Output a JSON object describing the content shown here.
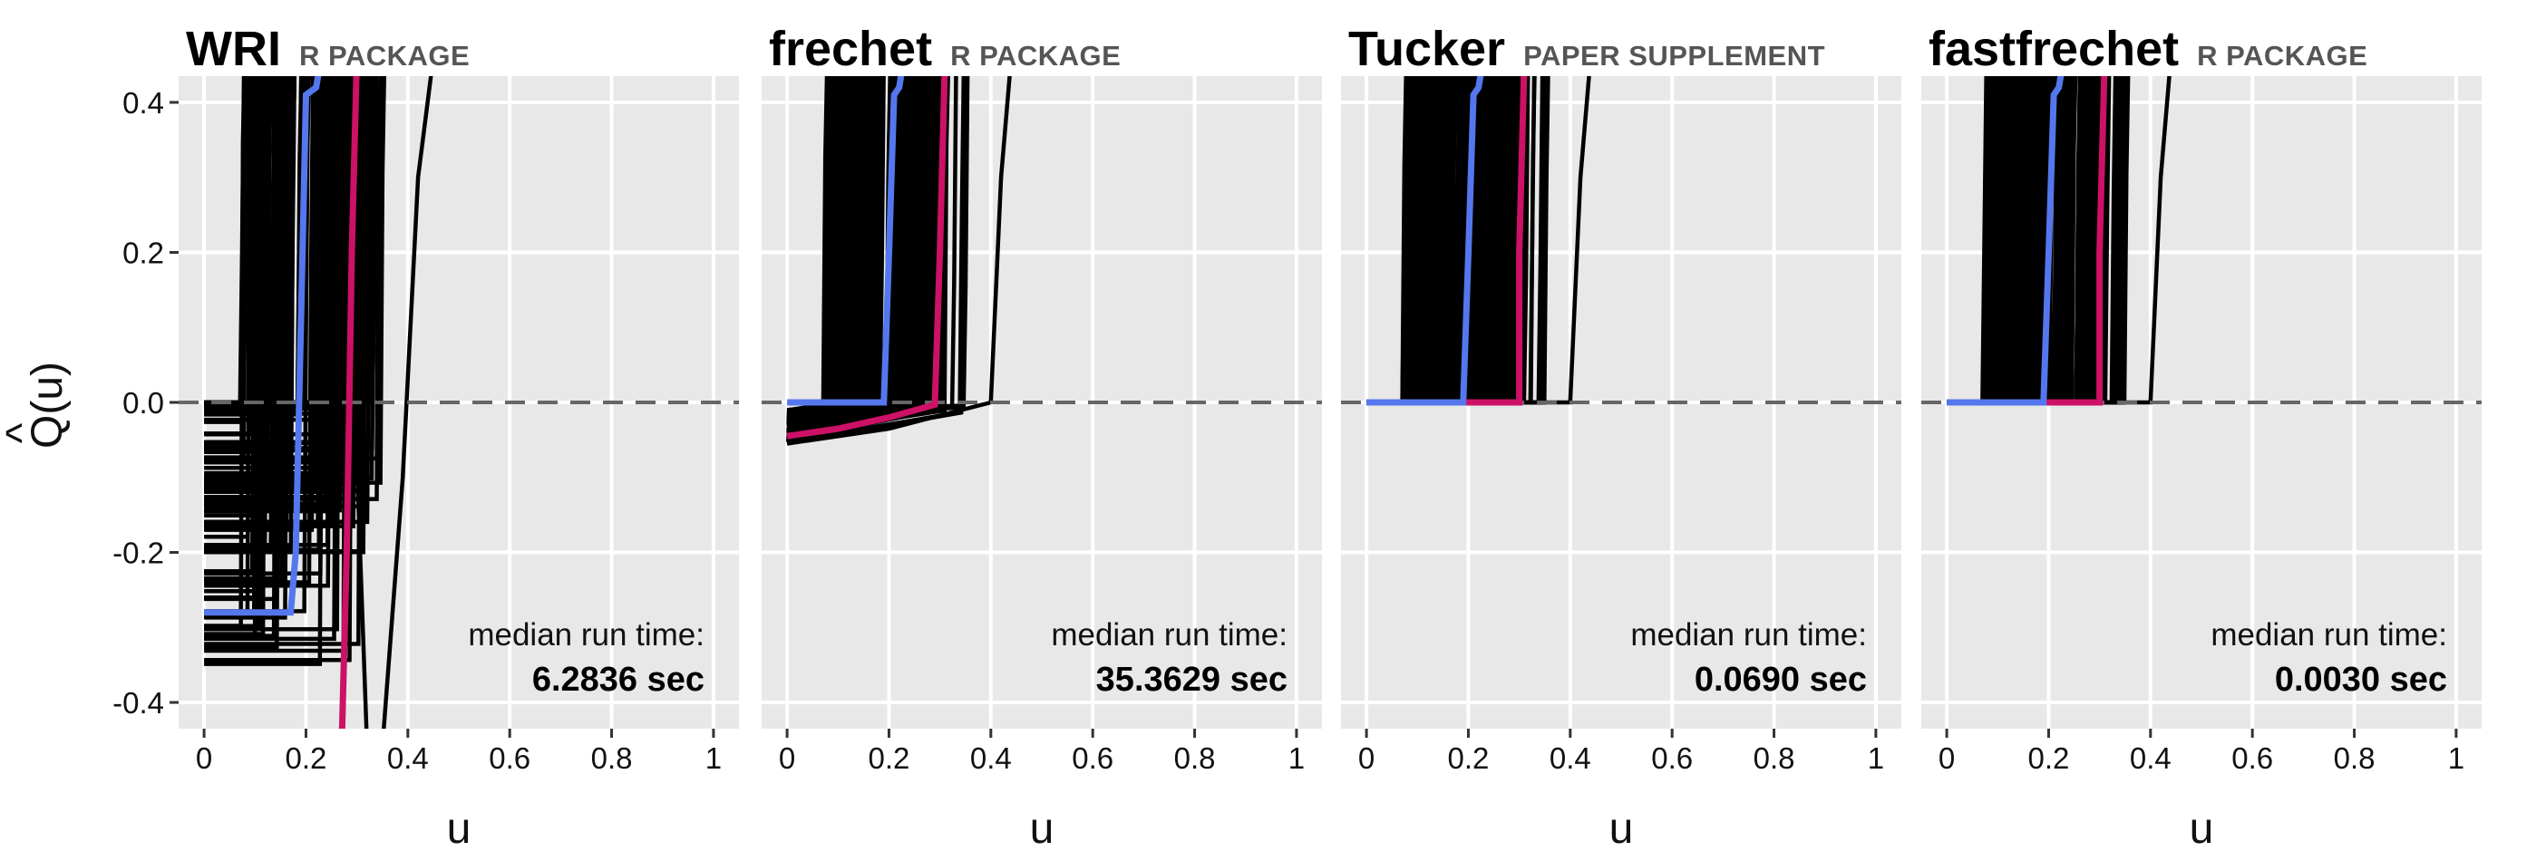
{
  "chart_data": {
    "type": "line",
    "ylabel": "Q̂(u)",
    "xlabel": "u",
    "xlim": [
      -0.05,
      1.05
    ],
    "ylim": [
      -0.435,
      0.435
    ],
    "xticks": [
      "0",
      "0.2",
      "0.4",
      "0.6",
      "0.8",
      "1"
    ],
    "yticks": [
      "0.4",
      "0.2",
      "0.0",
      "-0.2",
      "-0.4"
    ],
    "reference_line": {
      "y": 0.0,
      "style": "dashed"
    },
    "grid": true,
    "colors": {
      "panel_bg": "#e8e8e8",
      "grid": "#ffffff",
      "bundle": "#000000",
      "highlight_blue": "#5577ee",
      "highlight_pink": "#cc1166",
      "reference": "#666666"
    },
    "panels": [
      {
        "title": "WRI",
        "subtitle": "R PACKAGE",
        "runtime_label": "median run time:",
        "runtime_value": "6.2836 sec",
        "blue_series": [
          [
            0,
            -0.28
          ],
          [
            0.17,
            -0.28
          ],
          [
            0.18,
            -0.2
          ],
          [
            0.19,
            0.1
          ],
          [
            0.2,
            0.41
          ],
          [
            0.22,
            0.42
          ],
          [
            0.23,
            0.46
          ]
        ],
        "pink_series": [
          [
            0.27,
            -0.46
          ],
          [
            0.28,
            -0.2
          ],
          [
            0.29,
            0.2
          ],
          [
            0.3,
            0.46
          ]
        ]
      },
      {
        "title": "frechet",
        "subtitle": "R PACKAGE",
        "runtime_label": "median run time:",
        "runtime_value": "35.3629 sec",
        "blue_series": [
          [
            0,
            0
          ],
          [
            0.19,
            0
          ],
          [
            0.2,
            0.2
          ],
          [
            0.21,
            0.41
          ],
          [
            0.22,
            0.42
          ],
          [
            0.23,
            0.46
          ]
        ],
        "pink_series": [
          [
            0,
            -0.045
          ],
          [
            0.1,
            -0.035
          ],
          [
            0.2,
            -0.02
          ],
          [
            0.29,
            -0.003
          ],
          [
            0.3,
            0.2
          ],
          [
            0.31,
            0.46
          ]
        ]
      },
      {
        "title": "Tucker",
        "subtitle": "PAPER SUPPLEMENT",
        "runtime_label": "median run time:",
        "runtime_value": "0.0690 sec",
        "blue_series": [
          [
            0,
            0
          ],
          [
            0.19,
            0
          ],
          [
            0.2,
            0.2
          ],
          [
            0.21,
            0.41
          ],
          [
            0.22,
            0.42
          ],
          [
            0.23,
            0.46
          ]
        ],
        "pink_series": [
          [
            0,
            0
          ],
          [
            0.3,
            0
          ],
          [
            0.3,
            0.2
          ],
          [
            0.31,
            0.46
          ]
        ]
      },
      {
        "title": "fastfrechet",
        "subtitle": "R PACKAGE",
        "runtime_label": "median run time:",
        "runtime_value": "0.0030 sec",
        "blue_series": [
          [
            0,
            0
          ],
          [
            0.19,
            0
          ],
          [
            0.2,
            0.2
          ],
          [
            0.21,
            0.41
          ],
          [
            0.22,
            0.42
          ],
          [
            0.23,
            0.46
          ]
        ],
        "pink_series": [
          [
            0,
            0
          ],
          [
            0.3,
            0
          ],
          [
            0.3,
            0.2
          ],
          [
            0.31,
            0.46
          ]
        ]
      }
    ]
  }
}
